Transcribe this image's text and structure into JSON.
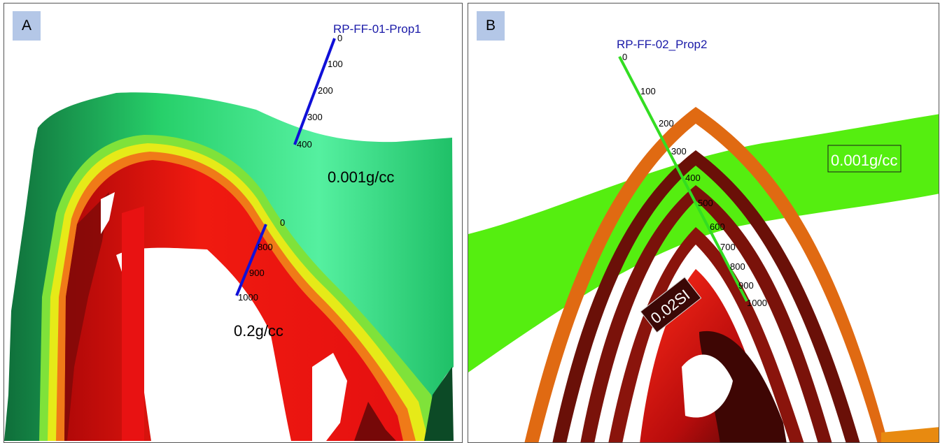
{
  "panel_a": {
    "label": "A",
    "well_name": "RP-FF-01-Prop1",
    "upper_ticks": [
      "0",
      "100",
      "200",
      "300",
      "400"
    ],
    "lower_ticks": [
      "0",
      "800",
      "900",
      "1000"
    ],
    "label_outer": "0.001g/cc",
    "label_inner": "0.2g/cc"
  },
  "panel_b": {
    "label": "B",
    "well_name": "RP-FF-02_Prop2",
    "ticks": [
      "0",
      "100",
      "200",
      "300",
      "400",
      "500",
      "600",
      "700",
      "800",
      "900",
      "1000"
    ],
    "label_outer": "0.001g/cc",
    "label_inner": "0.02SI"
  },
  "colors": {
    "well_a": "#1010d8",
    "well_b": "#33dd22",
    "well_title": "#1a1aa8",
    "green_outer": "#2ee07a",
    "red_core": "#ee1010",
    "dark_red": "#5a0a08",
    "orange": "#e86a10",
    "lime": "#55ee10"
  }
}
